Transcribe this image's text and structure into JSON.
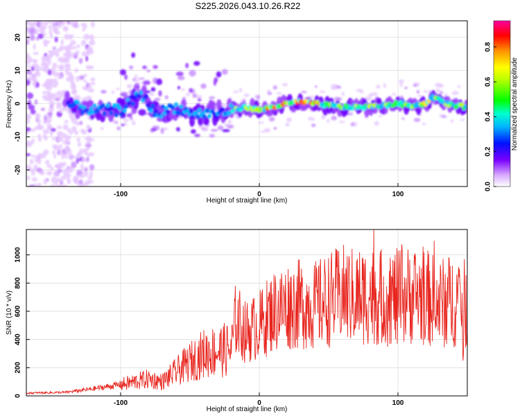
{
  "title": "S225.2026.043.10.26.R22",
  "chart_data": [
    {
      "type": "heatmap",
      "xlabel": "Height of straight line (km)",
      "ylabel": "Frequency (Hz)",
      "xlim": [
        -168,
        150
      ],
      "ylim": [
        -25,
        25
      ],
      "xticks": [
        "-100",
        "0",
        "100"
      ],
      "yticks": [
        "-20",
        "-10",
        "0",
        "10",
        "20"
      ],
      "colorbar": {
        "label": "Normalized spectral amplitude",
        "range": [
          0.0,
          0.95
        ],
        "ticks": [
          "0.0",
          "0.2",
          "0.4",
          "0.6",
          "0.8"
        ]
      },
      "grid": true,
      "ridge": {
        "description_points_x": [
          -140,
          -120,
          -100,
          -85,
          -75,
          -60,
          -50,
          -40,
          -30,
          -20,
          -10,
          0,
          20,
          30,
          40,
          60,
          80,
          100,
          110,
          120,
          125,
          135,
          148
        ],
        "description_points_y": [
          0,
          -2,
          -2,
          3,
          -3,
          -1,
          -3,
          -3,
          -3,
          -2,
          -1,
          -2,
          0,
          0.5,
          0,
          -1,
          -1,
          0,
          -0.5,
          0,
          2,
          0,
          -1
        ]
      }
    },
    {
      "type": "line",
      "xlabel": "Height of straight line (km)",
      "ylabel": "SNR (10 * v/v)",
      "xlim": [
        -168,
        150
      ],
      "ylim": [
        0,
        1180
      ],
      "xticks": [
        "-100",
        "0",
        "100"
      ],
      "yticks": [
        "0",
        "200",
        "400",
        "600",
        "800",
        "1000"
      ],
      "grid": true,
      "series": [
        {
          "color": "#e8251e",
          "envelope_x": [
            -168,
            -140,
            -120,
            -100,
            -80,
            -70,
            -60,
            -50,
            -40,
            -30,
            -20,
            -17,
            -10,
            0,
            10,
            20,
            30,
            40,
            50,
            60,
            70,
            80,
            90,
            100,
            110,
            120,
            130,
            140,
            150
          ],
          "envelope_y": [
            20,
            25,
            50,
            80,
            120,
            100,
            170,
            240,
            300,
            320,
            330,
            550,
            450,
            500,
            600,
            640,
            650,
            640,
            680,
            720,
            700,
            720,
            690,
            700,
            720,
            700,
            650,
            680,
            640
          ]
        }
      ]
    }
  ]
}
